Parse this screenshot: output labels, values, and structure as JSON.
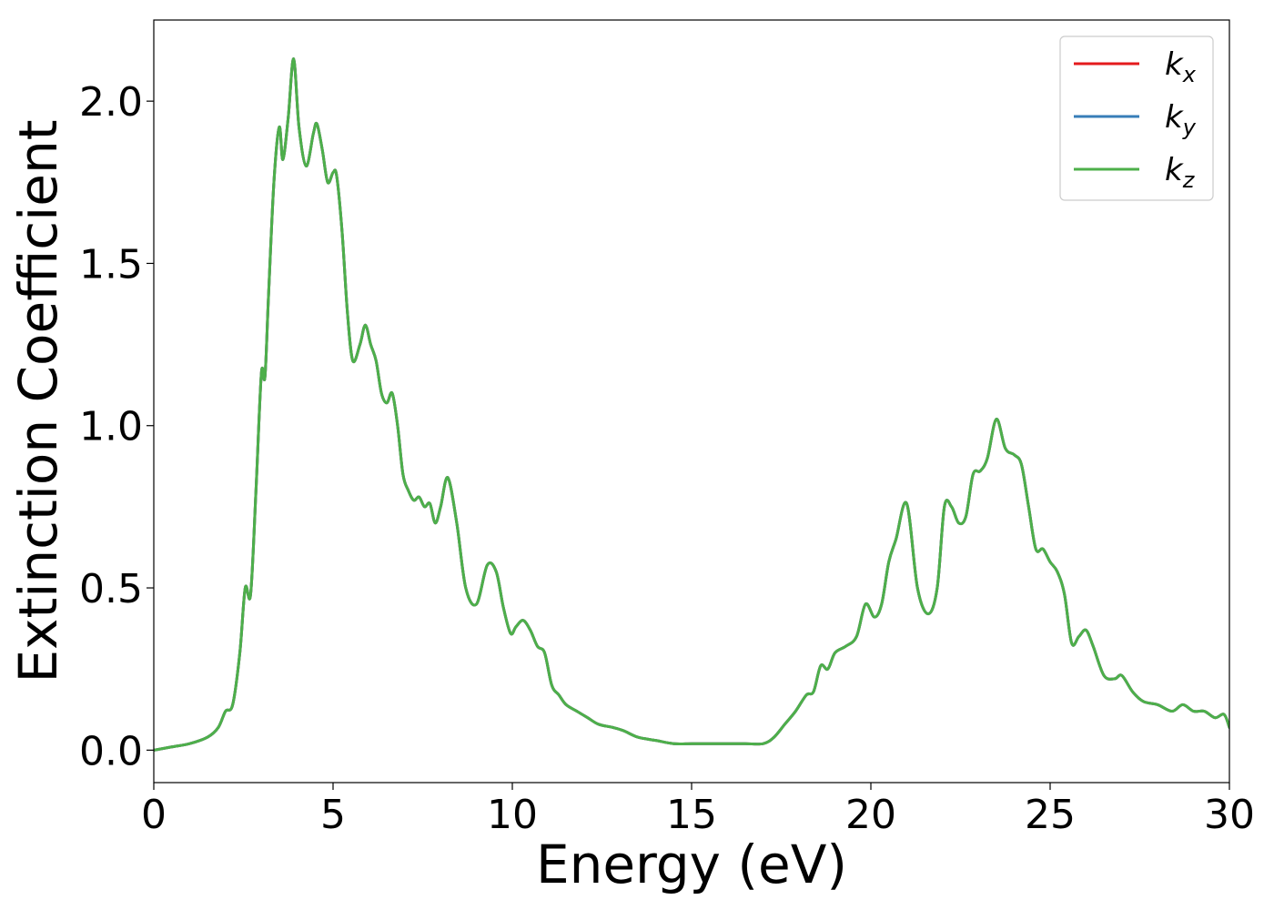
{
  "chart_data": {
    "type": "line",
    "title": "",
    "xlabel": "Energy (eV)",
    "ylabel": "Extinction Coefficient",
    "xlim": [
      0,
      30
    ],
    "ylim": [
      -0.1,
      2.25
    ],
    "xticks": [
      0,
      5,
      10,
      15,
      20,
      25,
      30
    ],
    "xtick_labels": [
      "0",
      "5",
      "10",
      "15",
      "20",
      "25",
      "30"
    ],
    "yticks": [
      0.0,
      0.5,
      1.0,
      1.5,
      2.0
    ],
    "ytick_labels": [
      "0.0",
      "0.5",
      "1.0",
      "1.5",
      "2.0"
    ],
    "grid": false,
    "legend_position": "top-right",
    "x": [
      0,
      0.5,
      1.0,
      1.5,
      1.8,
      2.0,
      2.2,
      2.4,
      2.55,
      2.7,
      2.85,
      3.0,
      3.1,
      3.2,
      3.35,
      3.5,
      3.6,
      3.75,
      3.9,
      4.05,
      4.25,
      4.45,
      4.55,
      4.7,
      4.85,
      5.0,
      5.1,
      5.25,
      5.4,
      5.55,
      5.75,
      5.9,
      6.05,
      6.2,
      6.35,
      6.5,
      6.65,
      6.8,
      6.95,
      7.1,
      7.25,
      7.4,
      7.55,
      7.7,
      7.85,
      8.0,
      8.2,
      8.45,
      8.7,
      9.0,
      9.3,
      9.55,
      9.75,
      9.95,
      10.1,
      10.3,
      10.5,
      10.7,
      10.9,
      11.1,
      11.3,
      11.5,
      11.8,
      12.1,
      12.4,
      12.8,
      13.1,
      13.5,
      14.0,
      14.5,
      15.0,
      15.5,
      16.0,
      16.5,
      17.0,
      17.3,
      17.6,
      17.9,
      18.2,
      18.4,
      18.6,
      18.8,
      19.0,
      19.3,
      19.6,
      19.85,
      20.1,
      20.3,
      20.5,
      20.7,
      21.0,
      21.3,
      21.6,
      21.85,
      22.05,
      22.25,
      22.45,
      22.65,
      22.85,
      23.05,
      23.25,
      23.5,
      23.75,
      24.0,
      24.2,
      24.4,
      24.6,
      24.8,
      25.0,
      25.2,
      25.4,
      25.6,
      25.8,
      26.0,
      26.2,
      26.5,
      26.8,
      27.0,
      27.3,
      27.6,
      28.0,
      28.4,
      28.7,
      29.0,
      29.3,
      29.6,
      29.85,
      30.0
    ],
    "series": [
      {
        "name": "k_x",
        "label_main": "k",
        "label_sub": "x",
        "color": "#e41a1c",
        "y": [
          0.0,
          0.01,
          0.02,
          0.04,
          0.07,
          0.12,
          0.14,
          0.3,
          0.5,
          0.48,
          0.8,
          1.16,
          1.15,
          1.4,
          1.75,
          1.92,
          1.82,
          1.95,
          2.13,
          1.92,
          1.8,
          1.9,
          1.93,
          1.85,
          1.75,
          1.78,
          1.77,
          1.6,
          1.35,
          1.2,
          1.25,
          1.31,
          1.25,
          1.2,
          1.1,
          1.07,
          1.1,
          1.0,
          0.85,
          0.8,
          0.77,
          0.78,
          0.75,
          0.76,
          0.7,
          0.75,
          0.84,
          0.7,
          0.5,
          0.45,
          0.57,
          0.55,
          0.44,
          0.36,
          0.38,
          0.4,
          0.37,
          0.32,
          0.3,
          0.2,
          0.17,
          0.14,
          0.12,
          0.1,
          0.08,
          0.07,
          0.06,
          0.04,
          0.03,
          0.02,
          0.02,
          0.02,
          0.02,
          0.02,
          0.02,
          0.04,
          0.08,
          0.12,
          0.17,
          0.18,
          0.26,
          0.25,
          0.3,
          0.32,
          0.35,
          0.45,
          0.41,
          0.45,
          0.58,
          0.65,
          0.76,
          0.5,
          0.42,
          0.5,
          0.75,
          0.75,
          0.7,
          0.72,
          0.85,
          0.86,
          0.9,
          1.02,
          0.93,
          0.91,
          0.88,
          0.75,
          0.62,
          0.62,
          0.58,
          0.55,
          0.48,
          0.33,
          0.35,
          0.37,
          0.32,
          0.23,
          0.22,
          0.23,
          0.18,
          0.15,
          0.14,
          0.12,
          0.14,
          0.12,
          0.12,
          0.1,
          0.11,
          0.07
        ]
      },
      {
        "name": "k_y",
        "label_main": "k",
        "label_sub": "y",
        "color": "#377eb8",
        "y": [
          0.0,
          0.01,
          0.02,
          0.04,
          0.07,
          0.12,
          0.14,
          0.3,
          0.5,
          0.48,
          0.8,
          1.16,
          1.15,
          1.4,
          1.75,
          1.92,
          1.82,
          1.95,
          2.13,
          1.92,
          1.8,
          1.9,
          1.93,
          1.85,
          1.75,
          1.78,
          1.77,
          1.6,
          1.35,
          1.2,
          1.25,
          1.31,
          1.25,
          1.2,
          1.1,
          1.07,
          1.1,
          1.0,
          0.85,
          0.8,
          0.77,
          0.78,
          0.75,
          0.76,
          0.7,
          0.75,
          0.84,
          0.7,
          0.5,
          0.45,
          0.57,
          0.55,
          0.44,
          0.36,
          0.38,
          0.4,
          0.37,
          0.32,
          0.3,
          0.2,
          0.17,
          0.14,
          0.12,
          0.1,
          0.08,
          0.07,
          0.06,
          0.04,
          0.03,
          0.02,
          0.02,
          0.02,
          0.02,
          0.02,
          0.02,
          0.04,
          0.08,
          0.12,
          0.17,
          0.18,
          0.26,
          0.25,
          0.3,
          0.32,
          0.35,
          0.45,
          0.41,
          0.45,
          0.58,
          0.65,
          0.76,
          0.5,
          0.42,
          0.5,
          0.75,
          0.75,
          0.7,
          0.72,
          0.85,
          0.86,
          0.9,
          1.02,
          0.93,
          0.91,
          0.88,
          0.75,
          0.62,
          0.62,
          0.58,
          0.55,
          0.48,
          0.33,
          0.35,
          0.37,
          0.32,
          0.23,
          0.22,
          0.23,
          0.18,
          0.15,
          0.14,
          0.12,
          0.14,
          0.12,
          0.12,
          0.1,
          0.11,
          0.07
        ]
      },
      {
        "name": "k_z",
        "label_main": "k",
        "label_sub": "z",
        "color": "#4daf4a",
        "y": [
          0.0,
          0.01,
          0.02,
          0.04,
          0.07,
          0.12,
          0.14,
          0.3,
          0.5,
          0.48,
          0.8,
          1.16,
          1.15,
          1.4,
          1.75,
          1.92,
          1.82,
          1.95,
          2.13,
          1.92,
          1.8,
          1.9,
          1.93,
          1.85,
          1.75,
          1.78,
          1.77,
          1.6,
          1.35,
          1.2,
          1.25,
          1.31,
          1.25,
          1.2,
          1.1,
          1.07,
          1.1,
          1.0,
          0.85,
          0.8,
          0.77,
          0.78,
          0.75,
          0.76,
          0.7,
          0.75,
          0.84,
          0.7,
          0.5,
          0.45,
          0.57,
          0.55,
          0.44,
          0.36,
          0.38,
          0.4,
          0.37,
          0.32,
          0.3,
          0.2,
          0.17,
          0.14,
          0.12,
          0.1,
          0.08,
          0.07,
          0.06,
          0.04,
          0.03,
          0.02,
          0.02,
          0.02,
          0.02,
          0.02,
          0.02,
          0.04,
          0.08,
          0.12,
          0.17,
          0.18,
          0.26,
          0.25,
          0.3,
          0.32,
          0.35,
          0.45,
          0.41,
          0.45,
          0.58,
          0.65,
          0.76,
          0.5,
          0.42,
          0.5,
          0.75,
          0.75,
          0.7,
          0.72,
          0.85,
          0.86,
          0.9,
          1.02,
          0.93,
          0.91,
          0.88,
          0.75,
          0.62,
          0.62,
          0.58,
          0.55,
          0.48,
          0.33,
          0.35,
          0.37,
          0.32,
          0.23,
          0.22,
          0.23,
          0.18,
          0.15,
          0.14,
          0.12,
          0.14,
          0.12,
          0.12,
          0.1,
          0.11,
          0.07
        ]
      }
    ]
  }
}
